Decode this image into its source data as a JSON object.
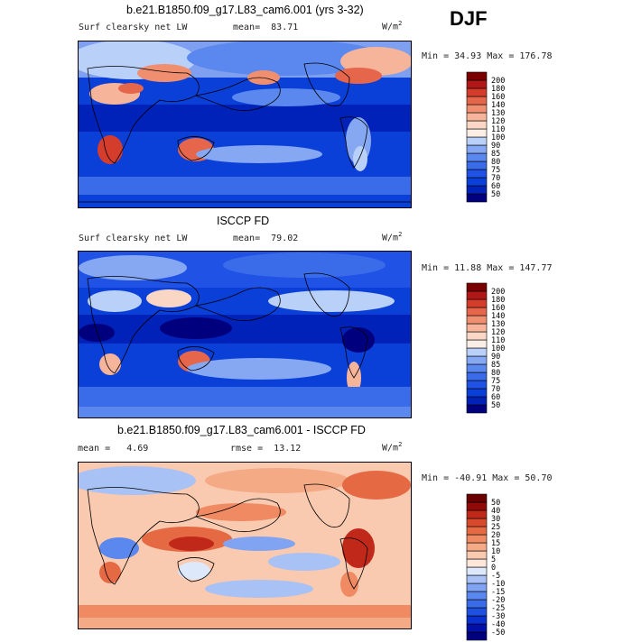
{
  "season": "DJF",
  "units_base": "W/m",
  "units_exp": "2",
  "panels": [
    {
      "title": "b.e21.B1850.f09_g17.L83_cam6.001 (yrs 3-32)",
      "left_label": "Surf clearsky net LW",
      "stat_label": "mean=",
      "stat_value": "83.71",
      "minmax": "Min =  34.93 Max = 176.78",
      "colorbar_levels": [
        "50",
        "60",
        "70",
        "75",
        "80",
        "85",
        "90",
        "100",
        "110",
        "120",
        "130",
        "140",
        "160",
        "180",
        "200"
      ],
      "colorbar_colors": [
        "#00007f",
        "#0022b8",
        "#0a3fd8",
        "#2052e6",
        "#3a6cea",
        "#5b88ee",
        "#86a8f2",
        "#b9d0f8",
        "#fbeee6",
        "#f9d7c4",
        "#f6b49a",
        "#f08e70",
        "#e6664c",
        "#d43d2c",
        "#b01818",
        "#7a0000"
      ],
      "mean_value": 83.71,
      "min_value": 34.93,
      "max_value": 176.78
    },
    {
      "title": "ISCCP FD",
      "left_label": "Surf clearsky net LW",
      "stat_label": "mean=",
      "stat_value": "79.02",
      "minmax": "Min =  11.88 Max = 147.77",
      "colorbar_levels": [
        "50",
        "60",
        "70",
        "75",
        "80",
        "85",
        "90",
        "100",
        "110",
        "120",
        "130",
        "140",
        "160",
        "180",
        "200"
      ],
      "colorbar_colors": [
        "#00007f",
        "#0022b8",
        "#0a3fd8",
        "#2052e6",
        "#3a6cea",
        "#5b88ee",
        "#86a8f2",
        "#b9d0f8",
        "#fbeee6",
        "#f9d7c4",
        "#f6b49a",
        "#f08e70",
        "#e6664c",
        "#d43d2c",
        "#b01818",
        "#7a0000"
      ],
      "mean_value": 79.02,
      "min_value": 11.88,
      "max_value": 147.77
    },
    {
      "title": "b.e21.B1850.f09_g17.L83_cam6.001 - ISCCP FD",
      "left_label": "mean =",
      "left_value": "4.69",
      "stat_label": "rmse =",
      "stat_value": "13.12",
      "minmax": "Min = -40.91 Max =  50.70",
      "colorbar_levels": [
        "-50",
        "-40",
        "-30",
        "-25",
        "-20",
        "-15",
        "-10",
        "-5",
        "0",
        "5",
        "10",
        "15",
        "20",
        "25",
        "30",
        "40",
        "50"
      ],
      "colorbar_colors": [
        "#00007f",
        "#0010a8",
        "#0a30d0",
        "#2050e0",
        "#3a6ce8",
        "#5a88ee",
        "#80a4f2",
        "#a8c2f6",
        "#dde8fb",
        "#fde6da",
        "#f9c9b0",
        "#f5aa86",
        "#ef8a62",
        "#e56a44",
        "#d84a2c",
        "#c0281a",
        "#900a0a",
        "#6a0000"
      ],
      "mean_value": 4.69,
      "rmse_value": 13.12,
      "min_value": -40.91,
      "max_value": 50.7
    }
  ]
}
